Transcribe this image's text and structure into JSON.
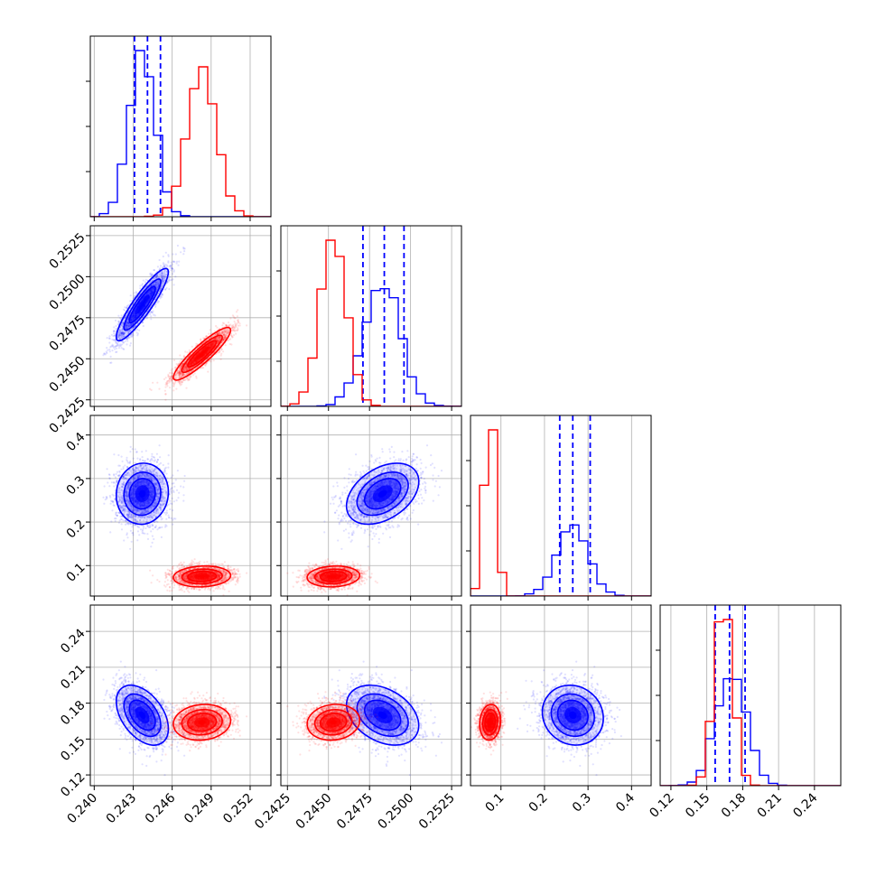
{
  "colors": {
    "series_a": "#0000ff",
    "series_b": "#ff0000"
  },
  "chart_data": {
    "type": "corner",
    "title": "",
    "series": [
      {
        "name": "",
        "color": "#0000ff",
        "mean": [
          0.2437,
          0.2483,
          0.265,
          0.17
        ],
        "sd": [
          0.001,
          0.0011,
          0.035,
          0.0125
        ],
        "corr": [
          [
            1,
            0.9,
            0.05,
            -0.45
          ],
          [
            0.9,
            1,
            0.4,
            -0.35
          ],
          [
            0.05,
            0.4,
            1,
            -0.1
          ],
          [
            -0.45,
            -0.35,
            -0.1,
            1
          ]
        ],
        "quantiles": [
          [
            0.2431,
            0.2441,
            0.2451
          ],
          [
            0.2471,
            0.2484,
            0.2496
          ],
          [
            0.235,
            0.265,
            0.305
          ],
          [
            0.157,
            0.169,
            0.182
          ]
        ]
      },
      {
        "name": "",
        "color": "#ff0000",
        "mean": [
          0.2483,
          0.2453,
          0.075,
          0.164
        ],
        "sd": [
          0.0011,
          0.0008,
          0.012,
          0.0075
        ],
        "corr": [
          [
            1,
            0.9,
            0.1,
            0.1
          ],
          [
            0.9,
            1,
            0.1,
            0.1
          ],
          [
            0.1,
            0.1,
            1,
            0.1
          ],
          [
            0.1,
            0.1,
            0.1,
            1
          ]
        ]
      }
    ],
    "axes": [
      {
        "range": [
          0.2397,
          0.2536
        ],
        "ticks": [
          0.24,
          0.243,
          0.246,
          0.249,
          0.252
        ],
        "ticklabels": [
          "0.240",
          "0.243",
          "0.246",
          "0.249",
          "0.252"
        ]
      },
      {
        "range": [
          0.2421,
          0.2531
        ],
        "ticks": [
          0.2425,
          0.245,
          0.2475,
          0.25,
          0.2525
        ],
        "ticklabels": [
          "0.2425",
          "0.2450",
          "0.2475",
          "0.2500",
          "0.2525"
        ]
      },
      {
        "range": [
          0.03,
          0.445
        ],
        "ticks": [
          0.1,
          0.2,
          0.3,
          0.4
        ],
        "ticklabels": [
          "0.1",
          "0.2",
          "0.3",
          "0.4"
        ]
      },
      {
        "range": [
          0.111,
          0.262
        ],
        "ticks": [
          0.12,
          0.15,
          0.18,
          0.21,
          0.24
        ],
        "ticklabels": [
          "0.12",
          "0.15",
          "0.18",
          "0.21",
          "0.24"
        ]
      }
    ],
    "grid": true,
    "legend": "none"
  }
}
